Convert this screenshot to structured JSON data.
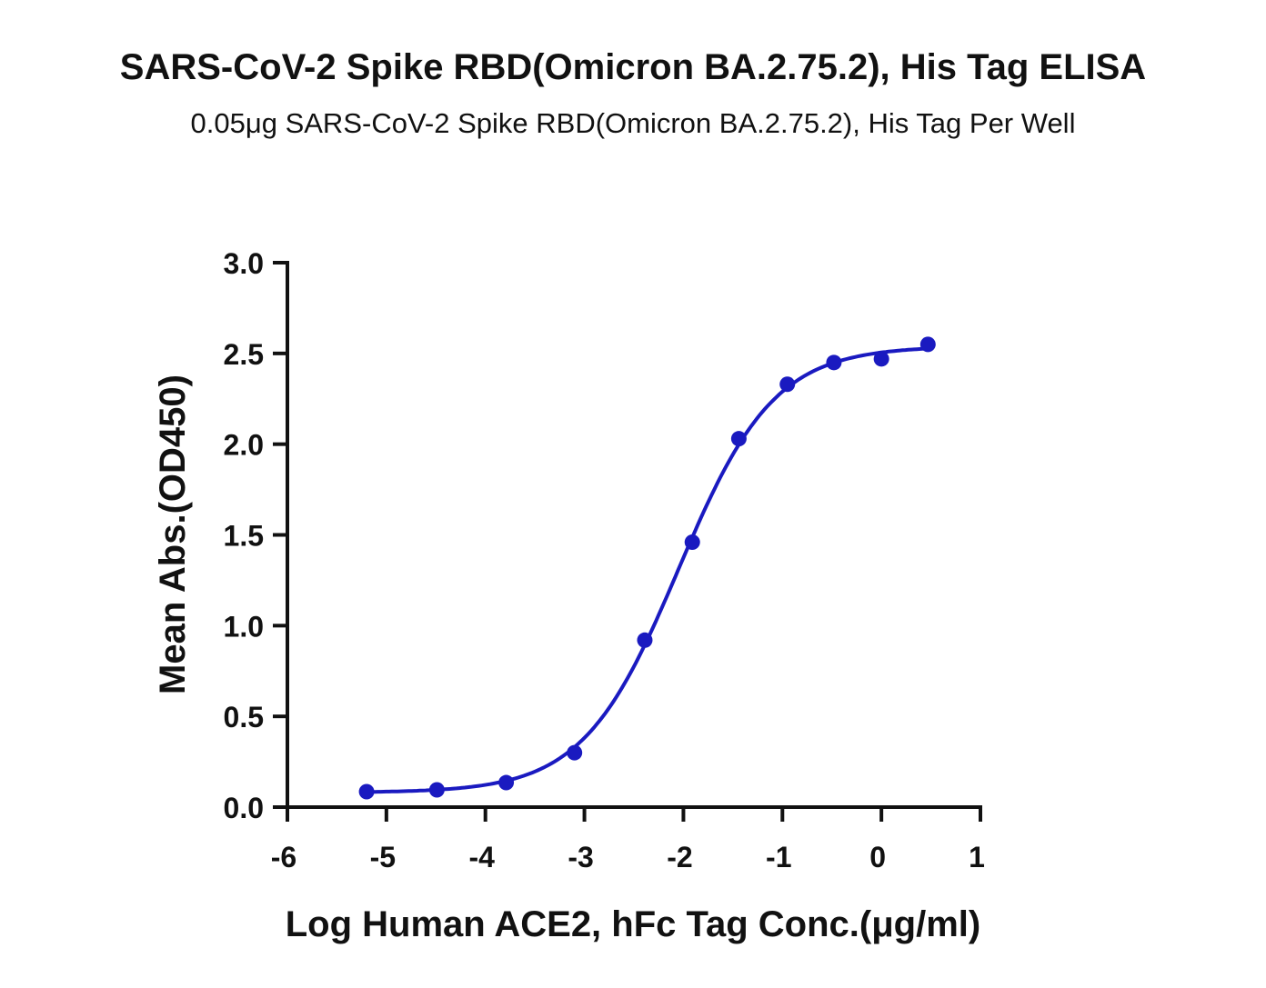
{
  "chart_data": {
    "type": "scatter",
    "title": "SARS-CoV-2 Spike RBD(Omicron BA.2.75.2), His Tag ELISA",
    "subtitle": "0.05μg SARS-CoV-2 Spike RBD(Omicron BA.2.75.2), His Tag Per Well",
    "xlabel": "Log Human ACE2, hFc Tag Conc.(μg/ml)",
    "ylabel": "Mean Abs.(OD450)",
    "xlim": [
      -6,
      1
    ],
    "ylim": [
      0,
      3.0
    ],
    "xticks": [
      "-6",
      "-5",
      "-4",
      "-3",
      "-2",
      "-1",
      "0",
      "1"
    ],
    "yticks": [
      "0.0",
      "0.5",
      "1.0",
      "1.5",
      "2.0",
      "2.5",
      "3.0"
    ],
    "grid": false,
    "color": "#1a1ac0",
    "series": [
      {
        "name": "Mean Abs.",
        "x": [
          -5.2,
          -4.49,
          -3.79,
          -3.1,
          -2.39,
          -1.91,
          -1.44,
          -0.95,
          -0.48,
          0.0,
          0.47
        ],
        "y": [
          0.085,
          0.095,
          0.135,
          0.3,
          0.92,
          1.46,
          2.03,
          2.33,
          2.45,
          2.47,
          2.55
        ]
      }
    ],
    "fit": {
      "model": "4PL",
      "bottom": 0.08,
      "top": 2.54,
      "logEC50": -2.05,
      "hill": 0.9,
      "xrange": [
        -5.2,
        0.47
      ]
    }
  }
}
